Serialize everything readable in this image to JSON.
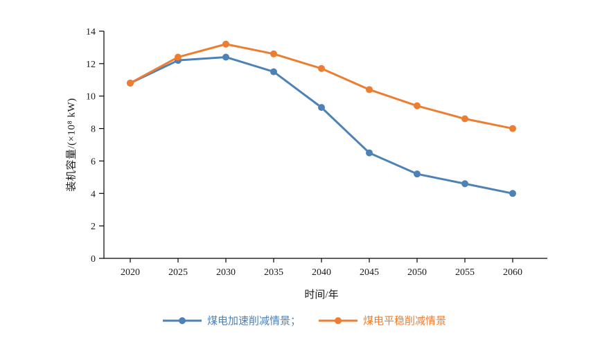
{
  "chart_data": {
    "type": "line",
    "x": [
      2020,
      2025,
      2030,
      2035,
      2040,
      2045,
      2050,
      2055,
      2060
    ],
    "series": [
      {
        "name": "煤电加速削减情景",
        "color": "#4D82B6",
        "values": [
          10.8,
          12.2,
          12.4,
          11.5,
          9.3,
          6.5,
          5.2,
          4.6,
          4.0
        ]
      },
      {
        "name": "煤电平稳削减情景",
        "color": "#ED7D31",
        "values": [
          10.8,
          12.4,
          13.2,
          12.6,
          11.7,
          10.4,
          9.4,
          8.6,
          8.0
        ]
      }
    ],
    "legend_labels": [
      "煤电加速削减情景；",
      "煤电平稳削减情景"
    ],
    "xlabel": "时间/年",
    "ylabel": "装机容量/(×10⁸ kW)",
    "ylim": [
      0,
      14
    ],
    "yticks": [
      0,
      2,
      4,
      6,
      8,
      10,
      12,
      14
    ],
    "grid": false,
    "legend_position": "bottom-center",
    "axis_color": "#000000",
    "tick_label_color": "#1a1a1a",
    "background": "#ffffff"
  }
}
